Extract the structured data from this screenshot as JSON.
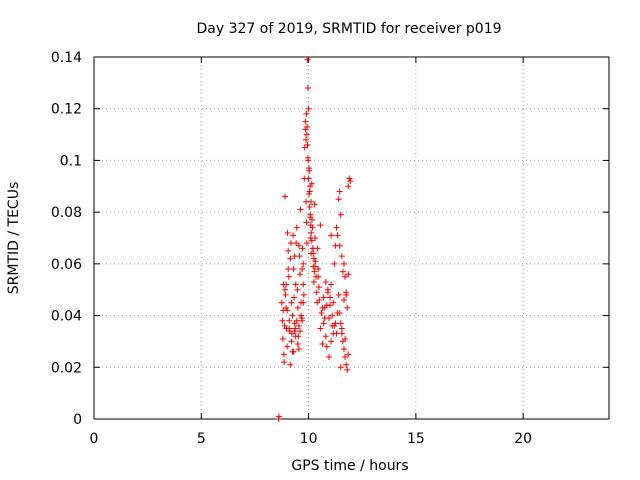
{
  "chart_data": {
    "type": "scatter",
    "title": "Day 327 of 2019, SRMTID for receiver p019",
    "xlabel": "GPS time / hours",
    "ylabel": "SRMTID / TECUs",
    "xlim": [
      0,
      24
    ],
    "ylim": [
      0,
      0.14
    ],
    "xticks": [
      0,
      5,
      10,
      15,
      20
    ],
    "xtick_labels": [
      "0",
      "5",
      "10",
      "15",
      "20"
    ],
    "yticks": [
      0,
      0.02,
      0.04,
      0.06,
      0.08,
      0.1,
      0.12,
      0.14
    ],
    "ytick_labels": [
      "0",
      "0.02",
      "0.04",
      "0.06",
      "0.08",
      "0.1",
      "0.12",
      "0.14"
    ],
    "grid": true,
    "marker": "plus",
    "color": "#ff0000",
    "series": [
      {
        "name": "p019",
        "x": [
          8.6,
          8.62,
          8.75,
          8.78,
          8.8,
          8.82,
          8.83,
          8.85,
          8.86,
          8.88,
          8.9,
          8.92,
          8.95,
          8.97,
          9.0,
          9.02,
          9.05,
          9.08,
          9.1,
          9.12,
          9.15,
          9.18,
          9.2,
          9.22,
          9.25,
          9.28,
          9.3,
          9.32,
          9.35,
          9.38,
          9.4,
          9.42,
          9.45,
          9.48,
          9.5,
          9.52,
          9.55,
          9.58,
          9.6,
          9.62,
          9.65,
          9.68,
          9.7,
          9.72,
          9.75,
          9.78,
          9.8,
          9.82,
          9.85,
          9.88,
          9.9,
          9.92,
          9.95,
          9.97,
          10.0,
          10.02,
          10.05,
          10.08,
          10.1,
          10.12,
          10.15,
          10.18,
          10.2,
          10.22,
          10.25,
          10.28,
          10.3,
          10.32,
          10.35,
          10.38,
          10.4,
          10.42,
          10.45,
          10.48,
          10.5,
          10.55,
          10.6,
          10.65,
          10.7,
          10.75,
          10.8,
          10.85,
          10.9,
          10.95,
          11.0,
          11.05,
          11.1,
          11.15,
          11.2,
          11.25,
          11.3,
          11.35,
          11.4,
          11.45,
          11.5,
          11.55,
          11.6,
          11.65,
          11.7,
          11.75,
          11.8,
          11.85,
          11.9,
          11.95,
          9.85,
          9.9,
          9.92,
          9.95,
          9.98,
          10.0,
          10.02,
          10.05,
          10.08,
          10.1,
          10.12,
          10.15,
          10.2,
          10.25,
          10.3,
          9.88,
          9.93,
          9.97,
          10.03,
          10.07,
          10.11,
          10.16,
          10.22,
          10.27,
          11.4,
          11.45,
          11.5,
          11.55,
          11.6,
          11.65,
          11.7,
          11.75,
          11.8,
          11.85,
          8.9,
          9.0,
          9.1,
          9.2,
          9.3,
          9.4,
          9.5,
          9.6,
          9.7,
          10.6,
          10.7,
          10.8,
          10.9,
          11.0,
          11.1,
          11.2,
          11.3,
          11.5,
          11.7,
          9.15,
          9.25,
          9.35,
          9.45,
          9.55,
          9.65,
          9.75,
          10.65,
          10.75,
          10.85,
          10.95,
          11.05,
          11.15,
          11.25,
          11.35,
          11.55,
          11.65,
          11.75,
          8.95,
          9.05,
          9.35,
          9.55,
          9.75,
          10.45,
          10.55,
          11.05,
          11.45,
          11.85
        ],
        "y": [
          0.0,
          0.001,
          0.045,
          0.038,
          0.031,
          0.042,
          0.052,
          0.025,
          0.022,
          0.036,
          0.086,
          0.048,
          0.043,
          0.035,
          0.028,
          0.072,
          0.065,
          0.055,
          0.038,
          0.034,
          0.062,
          0.068,
          0.045,
          0.033,
          0.04,
          0.071,
          0.058,
          0.047,
          0.037,
          0.035,
          0.052,
          0.068,
          0.074,
          0.05,
          0.043,
          0.032,
          0.027,
          0.063,
          0.056,
          0.081,
          0.045,
          0.039,
          0.058,
          0.066,
          0.052,
          0.048,
          0.093,
          0.105,
          0.112,
          0.084,
          0.076,
          0.068,
          0.139,
          0.128,
          0.12,
          0.097,
          0.088,
          0.078,
          0.07,
          0.064,
          0.091,
          0.074,
          0.066,
          0.059,
          0.053,
          0.083,
          0.07,
          0.061,
          0.055,
          0.049,
          0.045,
          0.066,
          0.058,
          0.051,
          0.046,
          0.035,
          0.041,
          0.029,
          0.037,
          0.043,
          0.032,
          0.044,
          0.05,
          0.039,
          0.047,
          0.052,
          0.036,
          0.045,
          0.06,
          0.067,
          0.074,
          0.071,
          0.085,
          0.088,
          0.079,
          0.063,
          0.057,
          0.06,
          0.055,
          0.048,
          0.043,
          0.056,
          0.093,
          0.092,
          0.115,
          0.118,
          0.11,
          0.106,
          0.1,
          0.093,
          0.087,
          0.082,
          0.079,
          0.075,
          0.072,
          0.069,
          0.066,
          0.062,
          0.059,
          0.108,
          0.113,
          0.101,
          0.096,
          0.09,
          0.084,
          0.077,
          0.064,
          0.057,
          0.048,
          0.041,
          0.037,
          0.033,
          0.03,
          0.027,
          0.024,
          0.021,
          0.019,
          0.025,
          0.05,
          0.042,
          0.035,
          0.03,
          0.026,
          0.032,
          0.029,
          0.034,
          0.038,
          0.041,
          0.047,
          0.053,
          0.049,
          0.044,
          0.04,
          0.036,
          0.033,
          0.02,
          0.031,
          0.021,
          0.026,
          0.034,
          0.038,
          0.036,
          0.04,
          0.045,
          0.043,
          0.039,
          0.028,
          0.024,
          0.03,
          0.033,
          0.037,
          0.041,
          0.035,
          0.046,
          0.049,
          0.052,
          0.058,
          0.063,
          0.067,
          0.06,
          0.055,
          0.075,
          0.071,
          0.067,
          0.09
        ]
      }
    ]
  }
}
